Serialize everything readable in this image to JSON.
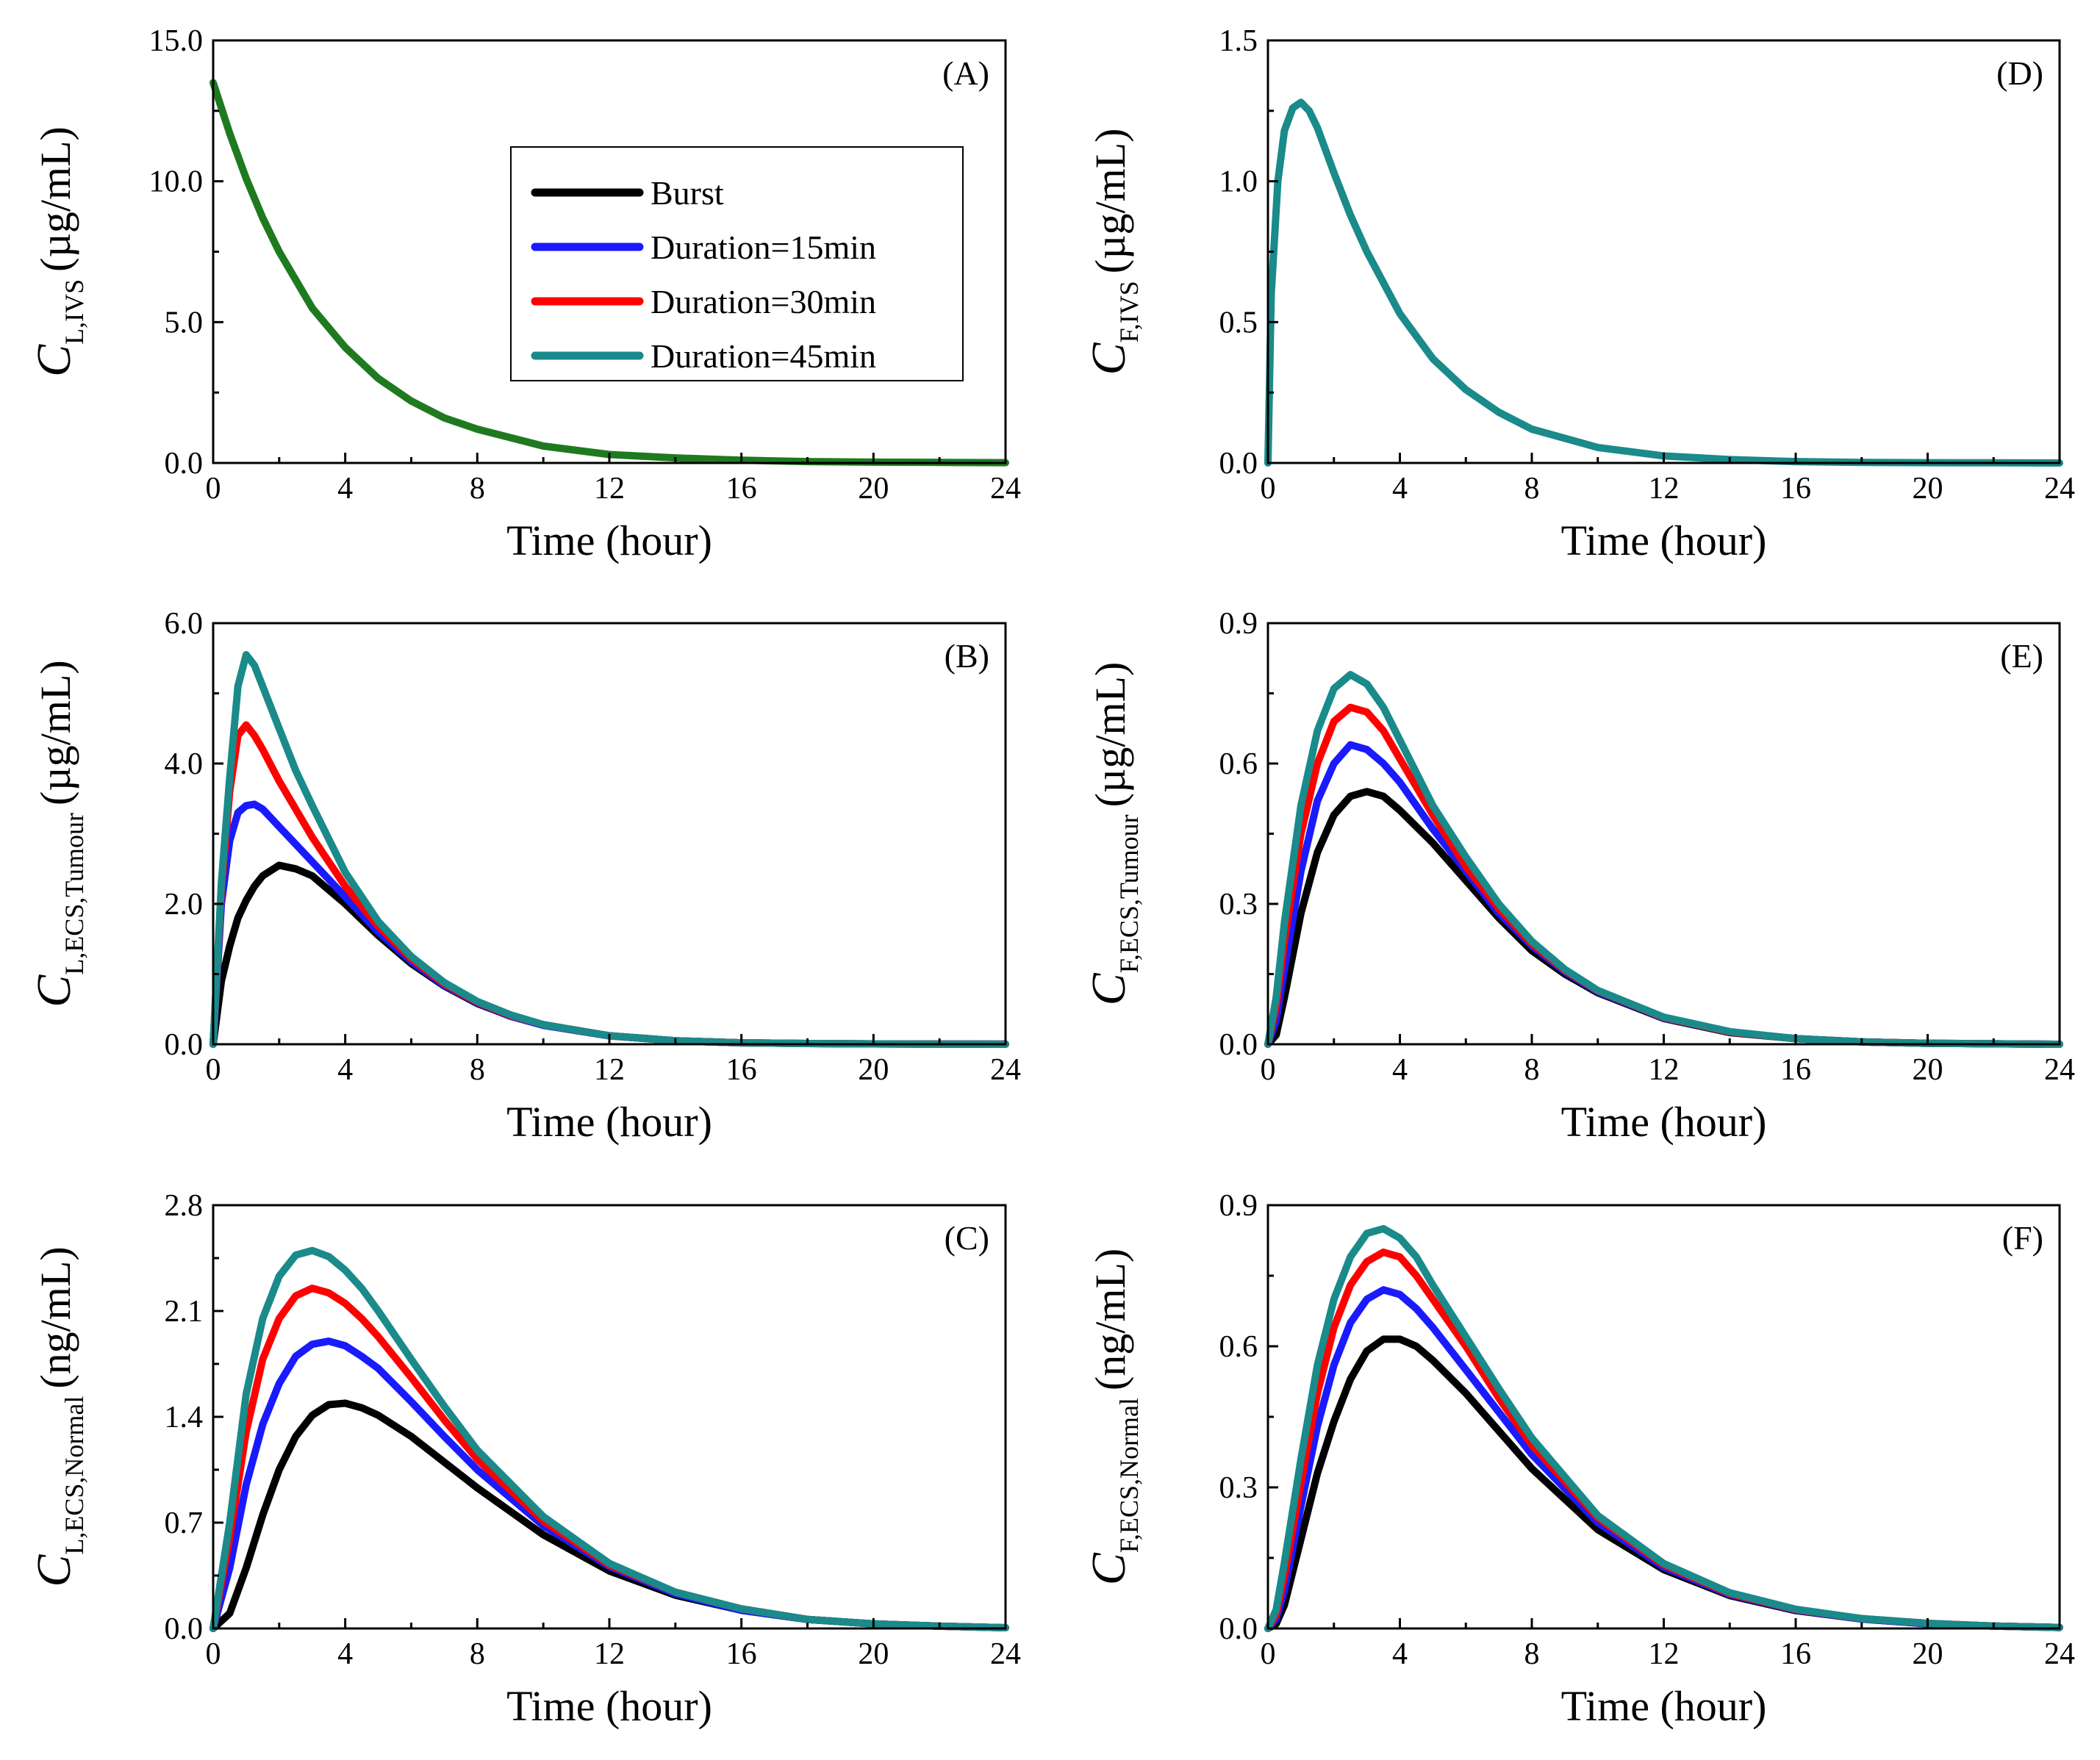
{
  "chart_data": [
    {
      "type": "line",
      "panel": "A",
      "label": "(A)",
      "title": "",
      "xlabel": "Time (hour)",
      "ylabel_symbol": "C",
      "ylabel_subscript": "L,IVS",
      "ylabel_unit": "(µg/mL)",
      "xlim": [
        0,
        24
      ],
      "ylim": [
        0,
        15
      ],
      "xticks": [
        "0",
        "4",
        "8",
        "12",
        "16",
        "20",
        "24"
      ],
      "yticks": [
        "0.0",
        "5.0",
        "10.0",
        "15.0"
      ],
      "legend_position": "upper-middle",
      "x": [
        0,
        0.5,
        1,
        1.5,
        2,
        3,
        4,
        5,
        6,
        7,
        8,
        10,
        12,
        14,
        16,
        18,
        20,
        22,
        24
      ],
      "series": [
        {
          "name": "Burst",
          "values": [
            13.5,
            11.7,
            10.1,
            8.7,
            7.5,
            5.5,
            4.1,
            3.0,
            2.2,
            1.6,
            1.2,
            0.6,
            0.3,
            0.18,
            0.1,
            0.05,
            0.03,
            0.02,
            0.01
          ]
        },
        {
          "name": "Duration=15min",
          "values": [
            13.5,
            11.7,
            10.1,
            8.7,
            7.5,
            5.5,
            4.1,
            3.0,
            2.2,
            1.6,
            1.2,
            0.6,
            0.3,
            0.18,
            0.1,
            0.05,
            0.03,
            0.02,
            0.01
          ]
        },
        {
          "name": "Duration=30min",
          "values": [
            13.5,
            11.7,
            10.1,
            8.7,
            7.5,
            5.5,
            4.1,
            3.0,
            2.2,
            1.6,
            1.2,
            0.6,
            0.3,
            0.18,
            0.1,
            0.05,
            0.03,
            0.02,
            0.01
          ]
        },
        {
          "name": "Duration=45min",
          "values": [
            13.5,
            11.7,
            10.1,
            8.7,
            7.5,
            5.5,
            4.1,
            3.0,
            2.2,
            1.6,
            1.2,
            0.6,
            0.3,
            0.18,
            0.1,
            0.05,
            0.03,
            0.02,
            0.01
          ]
        }
      ]
    },
    {
      "type": "line",
      "panel": "B",
      "label": "(B)",
      "title": "",
      "xlabel": "Time (hour)",
      "ylabel_symbol": "C",
      "ylabel_subscript": "L,ECS,Tumour",
      "ylabel_unit": "(µg/mL)",
      "xlim": [
        0,
        24
      ],
      "ylim": [
        0,
        6
      ],
      "xticks": [
        "0",
        "4",
        "8",
        "12",
        "16",
        "20",
        "24"
      ],
      "yticks": [
        "0.0",
        "2.0",
        "4.0",
        "6.0"
      ],
      "x": [
        0,
        0.25,
        0.5,
        0.75,
        1,
        1.25,
        1.5,
        2,
        2.5,
        3,
        4,
        5,
        6,
        7,
        8,
        9,
        10,
        12,
        14,
        16,
        18,
        20,
        22,
        24
      ],
      "series": [
        {
          "name": "Burst",
          "values": [
            0,
            0.9,
            1.4,
            1.8,
            2.05,
            2.25,
            2.4,
            2.55,
            2.5,
            2.4,
            2.0,
            1.55,
            1.15,
            0.83,
            0.58,
            0.4,
            0.27,
            0.12,
            0.05,
            0.02,
            0.01,
            0.005,
            0.002,
            0.001
          ]
        },
        {
          "name": "Duration=15min",
          "values": [
            0,
            2.0,
            2.9,
            3.3,
            3.4,
            3.42,
            3.35,
            3.1,
            2.85,
            2.6,
            2.1,
            1.6,
            1.18,
            0.84,
            0.59,
            0.4,
            0.27,
            0.12,
            0.05,
            0.02,
            0.01,
            0.005,
            0.002,
            0.001
          ]
        },
        {
          "name": "Duration=30min",
          "values": [
            0,
            2.2,
            3.6,
            4.4,
            4.55,
            4.4,
            4.2,
            3.75,
            3.35,
            2.95,
            2.25,
            1.68,
            1.22,
            0.86,
            0.6,
            0.41,
            0.28,
            0.12,
            0.05,
            0.02,
            0.01,
            0.005,
            0.002,
            0.001
          ]
        },
        {
          "name": "Duration=45min",
          "values": [
            0,
            2.3,
            3.8,
            5.1,
            5.55,
            5.4,
            5.1,
            4.5,
            3.9,
            3.4,
            2.45,
            1.75,
            1.25,
            0.88,
            0.61,
            0.42,
            0.28,
            0.12,
            0.05,
            0.02,
            0.01,
            0.005,
            0.002,
            0.001
          ]
        }
      ]
    },
    {
      "type": "line",
      "panel": "C",
      "label": "(C)",
      "title": "",
      "xlabel": "Time (hour)",
      "ylabel_symbol": "C",
      "ylabel_subscript": "L,ECS,Normal",
      "ylabel_unit": "(ng/mL)",
      "xlim": [
        0,
        24
      ],
      "ylim": [
        0,
        2.8
      ],
      "xticks": [
        "0",
        "4",
        "8",
        "12",
        "16",
        "20",
        "24"
      ],
      "yticks": [
        "0.0",
        "0.7",
        "1.4",
        "2.1",
        "2.8"
      ],
      "x": [
        0,
        0.5,
        1,
        1.5,
        2,
        2.5,
        3,
        3.5,
        4,
        4.5,
        5,
        6,
        7,
        8,
        10,
        12,
        14,
        16,
        18,
        20,
        22,
        24
      ],
      "series": [
        {
          "name": "Burst",
          "values": [
            0,
            0.1,
            0.4,
            0.75,
            1.05,
            1.27,
            1.41,
            1.48,
            1.49,
            1.46,
            1.41,
            1.27,
            1.1,
            0.93,
            0.62,
            0.38,
            0.22,
            0.12,
            0.06,
            0.03,
            0.015,
            0.005
          ]
        },
        {
          "name": "Duration=15min",
          "values": [
            0,
            0.4,
            0.95,
            1.35,
            1.62,
            1.8,
            1.88,
            1.9,
            1.87,
            1.8,
            1.72,
            1.5,
            1.27,
            1.05,
            0.68,
            0.41,
            0.23,
            0.12,
            0.06,
            0.03,
            0.015,
            0.005
          ]
        },
        {
          "name": "Duration=30min",
          "values": [
            0,
            0.6,
            1.3,
            1.78,
            2.05,
            2.2,
            2.25,
            2.22,
            2.15,
            2.05,
            1.93,
            1.66,
            1.38,
            1.12,
            0.71,
            0.42,
            0.24,
            0.13,
            0.06,
            0.03,
            0.015,
            0.005
          ]
        },
        {
          "name": "Duration=45min",
          "values": [
            0,
            0.7,
            1.55,
            2.05,
            2.33,
            2.47,
            2.5,
            2.46,
            2.37,
            2.25,
            2.1,
            1.78,
            1.47,
            1.18,
            0.74,
            0.43,
            0.24,
            0.13,
            0.06,
            0.03,
            0.015,
            0.005
          ]
        }
      ]
    },
    {
      "type": "line",
      "panel": "D",
      "label": "(D)",
      "title": "",
      "xlabel": "Time (hour)",
      "ylabel_symbol": "C",
      "ylabel_subscript": "F,IVS",
      "ylabel_unit": "(µg/mL)",
      "xlim": [
        0,
        24
      ],
      "ylim": [
        0,
        1.5
      ],
      "xticks": [
        "0",
        "4",
        "8",
        "12",
        "16",
        "20",
        "24"
      ],
      "yticks": [
        "0.0",
        "0.5",
        "1.0",
        "1.5"
      ],
      "x": [
        0,
        0.1,
        0.3,
        0.5,
        0.75,
        1,
        1.25,
        1.5,
        2,
        2.5,
        3,
        4,
        5,
        6,
        7,
        8,
        10,
        12,
        14,
        16,
        18,
        20,
        22,
        24
      ],
      "series": [
        {
          "name": "Burst",
          "values": [
            0,
            0.6,
            1.0,
            1.18,
            1.26,
            1.28,
            1.25,
            1.19,
            1.03,
            0.88,
            0.75,
            0.53,
            0.37,
            0.26,
            0.18,
            0.12,
            0.055,
            0.025,
            0.012,
            0.005,
            0.002,
            0.001,
            0.0005,
            0
          ]
        },
        {
          "name": "Duration=15min",
          "values": [
            0,
            0.6,
            1.0,
            1.18,
            1.26,
            1.28,
            1.25,
            1.19,
            1.03,
            0.88,
            0.75,
            0.53,
            0.37,
            0.26,
            0.18,
            0.12,
            0.055,
            0.025,
            0.012,
            0.005,
            0.002,
            0.001,
            0.0005,
            0
          ]
        },
        {
          "name": "Duration=30min",
          "values": [
            0,
            0.6,
            1.0,
            1.18,
            1.26,
            1.28,
            1.25,
            1.19,
            1.03,
            0.88,
            0.75,
            0.53,
            0.37,
            0.26,
            0.18,
            0.12,
            0.055,
            0.025,
            0.012,
            0.005,
            0.002,
            0.001,
            0.0005,
            0
          ]
        },
        {
          "name": "Duration=45min",
          "values": [
            0,
            0.6,
            1.0,
            1.18,
            1.26,
            1.28,
            1.25,
            1.19,
            1.03,
            0.88,
            0.75,
            0.53,
            0.37,
            0.26,
            0.18,
            0.12,
            0.055,
            0.025,
            0.012,
            0.005,
            0.002,
            0.001,
            0.0005,
            0
          ]
        }
      ]
    },
    {
      "type": "line",
      "panel": "E",
      "label": "(E)",
      "title": "",
      "xlabel": "Time (hour)",
      "ylabel_symbol": "C",
      "ylabel_subscript": "F,ECS,Tumour",
      "ylabel_unit": "(µg/mL)",
      "xlim": [
        0,
        24
      ],
      "ylim": [
        0,
        0.9
      ],
      "xticks": [
        "0",
        "4",
        "8",
        "12",
        "16",
        "20",
        "24"
      ],
      "yticks": [
        "0.0",
        "0.3",
        "0.6",
        "0.9"
      ],
      "x": [
        0,
        0.25,
        0.5,
        1,
        1.5,
        2,
        2.5,
        3,
        3.5,
        4,
        5,
        6,
        7,
        8,
        9,
        10,
        12,
        14,
        16,
        18,
        20,
        22,
        24
      ],
      "series": [
        {
          "name": "Burst",
          "values": [
            0,
            0.02,
            0.1,
            0.28,
            0.41,
            0.49,
            0.53,
            0.54,
            0.53,
            0.5,
            0.43,
            0.35,
            0.27,
            0.2,
            0.15,
            0.11,
            0.055,
            0.025,
            0.012,
            0.005,
            0.002,
            0.001,
            0
          ]
        },
        {
          "name": "Duration=15min",
          "values": [
            0,
            0.05,
            0.16,
            0.37,
            0.52,
            0.6,
            0.64,
            0.63,
            0.6,
            0.56,
            0.46,
            0.37,
            0.28,
            0.21,
            0.155,
            0.112,
            0.056,
            0.026,
            0.012,
            0.005,
            0.002,
            0.001,
            0
          ]
        },
        {
          "name": "Duration=30min",
          "values": [
            0,
            0.08,
            0.22,
            0.45,
            0.6,
            0.69,
            0.72,
            0.71,
            0.67,
            0.61,
            0.49,
            0.38,
            0.29,
            0.215,
            0.158,
            0.114,
            0.057,
            0.026,
            0.012,
            0.005,
            0.002,
            0.001,
            0
          ]
        },
        {
          "name": "Duration=45min",
          "values": [
            0,
            0.1,
            0.26,
            0.51,
            0.67,
            0.76,
            0.79,
            0.77,
            0.72,
            0.65,
            0.51,
            0.4,
            0.3,
            0.22,
            0.16,
            0.115,
            0.058,
            0.027,
            0.012,
            0.005,
            0.002,
            0.001,
            0
          ]
        }
      ]
    },
    {
      "type": "line",
      "panel": "F",
      "label": "(F)",
      "title": "",
      "xlabel": "Time (hour)",
      "ylabel_symbol": "C",
      "ylabel_subscript": "F,ECS,Normal",
      "ylabel_unit": "(ng/mL)",
      "xlim": [
        0,
        24
      ],
      "ylim": [
        0,
        0.9
      ],
      "xticks": [
        "0",
        "4",
        "8",
        "12",
        "16",
        "20",
        "24"
      ],
      "yticks": [
        "0.0",
        "0.3",
        "0.6",
        "0.9"
      ],
      "x": [
        0,
        0.25,
        0.5,
        1,
        1.5,
        2,
        2.5,
        3,
        3.5,
        4,
        4.5,
        5,
        6,
        7,
        8,
        10,
        12,
        14,
        16,
        18,
        20,
        22,
        24
      ],
      "series": [
        {
          "name": "Burst",
          "values": [
            0,
            0.01,
            0.05,
            0.19,
            0.33,
            0.44,
            0.53,
            0.59,
            0.615,
            0.615,
            0.6,
            0.57,
            0.5,
            0.42,
            0.34,
            0.21,
            0.125,
            0.07,
            0.038,
            0.02,
            0.01,
            0.005,
            0.002
          ]
        },
        {
          "name": "Duration=15min",
          "values": [
            0,
            0.02,
            0.08,
            0.26,
            0.43,
            0.56,
            0.65,
            0.7,
            0.72,
            0.71,
            0.68,
            0.64,
            0.55,
            0.46,
            0.37,
            0.225,
            0.13,
            0.072,
            0.039,
            0.02,
            0.01,
            0.005,
            0.002
          ]
        },
        {
          "name": "Duration=30min",
          "values": [
            0,
            0.03,
            0.11,
            0.31,
            0.5,
            0.64,
            0.73,
            0.78,
            0.8,
            0.79,
            0.75,
            0.7,
            0.6,
            0.49,
            0.39,
            0.235,
            0.135,
            0.074,
            0.04,
            0.021,
            0.011,
            0.005,
            0.002
          ]
        },
        {
          "name": "Duration=45min",
          "values": [
            0,
            0.04,
            0.14,
            0.36,
            0.56,
            0.7,
            0.79,
            0.84,
            0.85,
            0.83,
            0.79,
            0.73,
            0.62,
            0.51,
            0.405,
            0.24,
            0.138,
            0.076,
            0.041,
            0.021,
            0.011,
            0.005,
            0.002
          ]
        }
      ]
    }
  ],
  "legend": {
    "items": [
      {
        "name": "Burst",
        "color": "#000000"
      },
      {
        "name": "Duration=15min",
        "color": "#1a1aff"
      },
      {
        "name": "Duration=30min",
        "color": "#ff0000"
      },
      {
        "name": "Duration=45min",
        "color": "#1a8a8a"
      }
    ]
  },
  "colors": {
    "single_A": "#1f7a1f",
    "single_D": "#1a8a8a"
  }
}
